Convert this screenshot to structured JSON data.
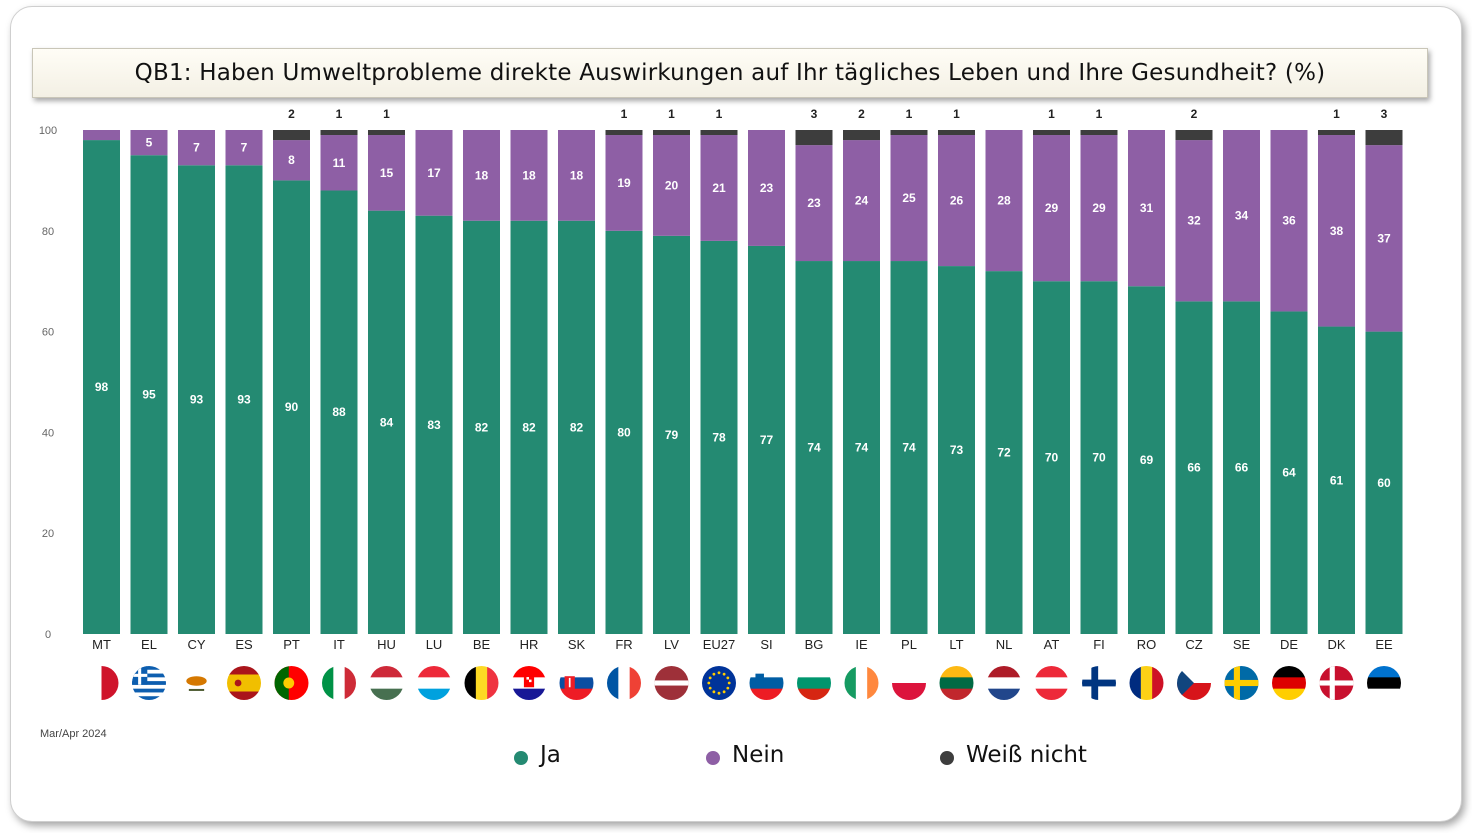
{
  "title": "QB1: Haben Umweltprobleme direkte Auswirkungen auf Ihr tägliches Leben und Ihre Gesundheit?  (%)",
  "source_note": "Mar/Apr 2024",
  "colors": {
    "ja": "#248a72",
    "nein": "#8e5fa5",
    "weiss_nicht": "#3d3d3d"
  },
  "legend": [
    {
      "key": "ja",
      "label": "Ja",
      "color": "#248a72"
    },
    {
      "key": "nein",
      "label": "Nein",
      "color": "#8e5fa5"
    },
    {
      "key": "weiss_nicht",
      "label": "Weiß nicht",
      "color": "#3d3d3d"
    }
  ],
  "chart_data": {
    "type": "bar",
    "stacked": true,
    "ylim": [
      0,
      100
    ],
    "yticks": [
      0,
      20,
      40,
      60,
      80,
      100
    ],
    "categories": [
      "MT",
      "EL",
      "CY",
      "ES",
      "PT",
      "IT",
      "HU",
      "LU",
      "BE",
      "HR",
      "SK",
      "FR",
      "LV",
      "EU27",
      "SI",
      "BG",
      "IE",
      "PL",
      "LT",
      "NL",
      "AT",
      "FI",
      "RO",
      "CZ",
      "SE",
      "DE",
      "DK",
      "EE"
    ],
    "flags": [
      "flag-malta-icon",
      "flag-greece-icon",
      "flag-cyprus-icon",
      "flag-spain-icon",
      "flag-portugal-icon",
      "flag-italy-icon",
      "flag-hungary-icon",
      "flag-luxembourg-icon",
      "flag-belgium-icon",
      "flag-croatia-icon",
      "flag-slovakia-icon",
      "flag-france-icon",
      "flag-latvia-icon",
      "flag-eu-icon",
      "flag-slovenia-icon",
      "flag-bulgaria-icon",
      "flag-ireland-icon",
      "flag-poland-icon",
      "flag-lithuania-icon",
      "flag-netherlands-icon",
      "flag-austria-icon",
      "flag-finland-icon",
      "flag-romania-icon",
      "flag-czechia-icon",
      "flag-sweden-icon",
      "flag-germany-icon",
      "flag-denmark-icon",
      "flag-estonia-icon"
    ],
    "series": [
      {
        "name": "Ja",
        "color": "#248a72",
        "values": [
          98,
          95,
          93,
          93,
          90,
          88,
          84,
          83,
          82,
          82,
          82,
          80,
          79,
          78,
          77,
          74,
          74,
          74,
          73,
          72,
          70,
          70,
          69,
          66,
          66,
          64,
          61,
          60
        ]
      },
      {
        "name": "Nein",
        "color": "#8e5fa5",
        "values": [
          2,
          5,
          7,
          7,
          8,
          11,
          15,
          17,
          18,
          18,
          18,
          19,
          20,
          21,
          23,
          23,
          24,
          25,
          26,
          28,
          29,
          29,
          31,
          32,
          34,
          36,
          38,
          37
        ]
      },
      {
        "name": "Weiß nicht",
        "color": "#3d3d3d",
        "values": [
          0,
          0,
          0,
          0,
          2,
          1,
          1,
          0,
          0,
          0,
          0,
          1,
          1,
          1,
          0,
          3,
          2,
          1,
          1,
          0,
          1,
          1,
          0,
          2,
          0,
          0,
          1,
          3
        ]
      }
    ]
  }
}
